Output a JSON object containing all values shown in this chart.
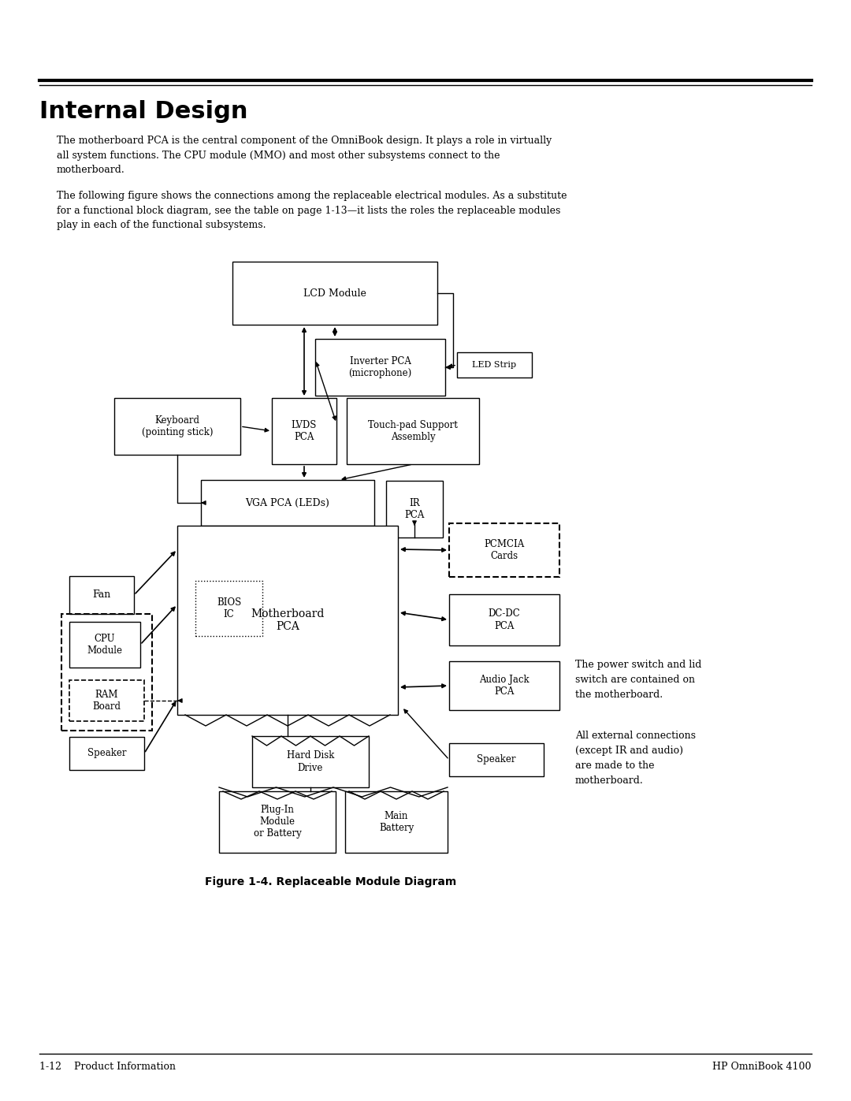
{
  "title": "Internal Design",
  "para1": "The motherboard PCA is the central component of the OmniBook design. It plays a role in virtually\nall system functions. The CPU module (MMO) and most other subsystems connect to the\nmotherboard.",
  "para2": "The following figure shows the connections among the replaceable electrical modules. As a substitute\nfor a functional block diagram, see the table on page 1-13—it lists the roles the replaceable modules\nplay in each of the functional subsystems.",
  "fig_caption": "Figure 1-4. Replaceable Module Diagram",
  "side_note1": "The power switch and lid\nswitch are contained on\nthe motherboard.",
  "side_note2": "All external connections\n(except IR and audio)\nare made to the\nmotherboard.",
  "footer_left": "1-12    Product Information",
  "footer_right": "HP OmniBook 4100",
  "bg_color": "#ffffff"
}
